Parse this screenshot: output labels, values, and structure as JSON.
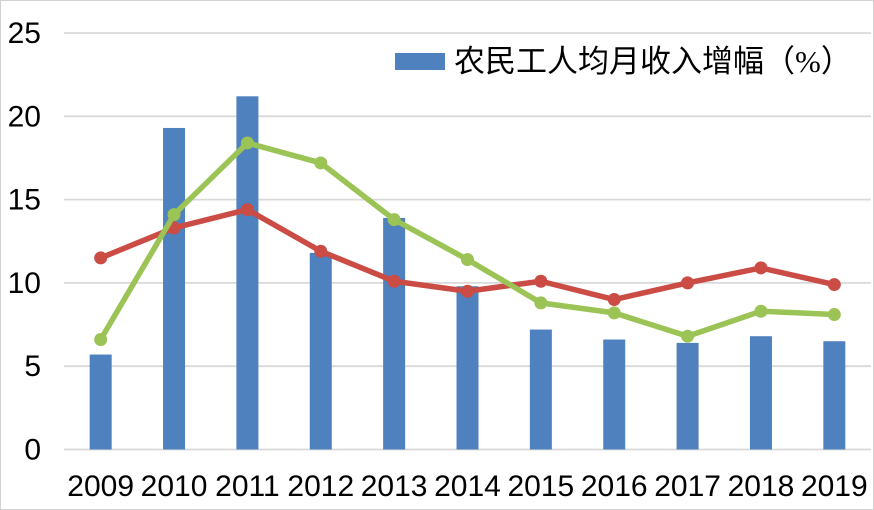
{
  "frame": {
    "background": "#ffffff",
    "border_color": "#d2d2d2"
  },
  "legend": {
    "bar_series_label": "农民工人均月收入增幅（%）",
    "position": "top-center"
  },
  "chart_data": {
    "type": "bar+line",
    "title": "",
    "xlabel": "",
    "ylabel": "",
    "categories": [
      "2009",
      "2010",
      "2011",
      "2012",
      "2013",
      "2014",
      "2015",
      "2016",
      "2017",
      "2018",
      "2019"
    ],
    "series": [
      {
        "id": "bar-series",
        "type": "bar",
        "name": "农民工人均月收入增幅（%）",
        "color": "#4E81BD",
        "in_legend": true,
        "values": [
          5.7,
          19.3,
          21.2,
          11.8,
          13.9,
          9.8,
          7.2,
          6.6,
          6.4,
          6.8,
          6.5
        ]
      },
      {
        "id": "red-line",
        "type": "line",
        "name": "",
        "color": "#CB4B45",
        "in_legend": false,
        "values": [
          11.5,
          13.3,
          14.4,
          11.9,
          10.1,
          9.5,
          10.1,
          9.0,
          10.0,
          10.9,
          9.9
        ]
      },
      {
        "id": "green-line",
        "type": "line",
        "name": "",
        "color": "#9BC355",
        "in_legend": false,
        "values": [
          6.6,
          14.1,
          18.4,
          17.2,
          13.8,
          11.4,
          8.8,
          8.2,
          6.8,
          8.3,
          8.1
        ]
      }
    ],
    "ylim": [
      0,
      25
    ],
    "yticks": [
      0,
      5,
      10,
      15,
      20,
      25
    ],
    "y_tick_labels": [
      "0",
      "5",
      "10",
      "15",
      "20",
      "25"
    ],
    "grid": true,
    "gridline_color": "#D9D9D9",
    "tick_label_color": "#000000"
  }
}
